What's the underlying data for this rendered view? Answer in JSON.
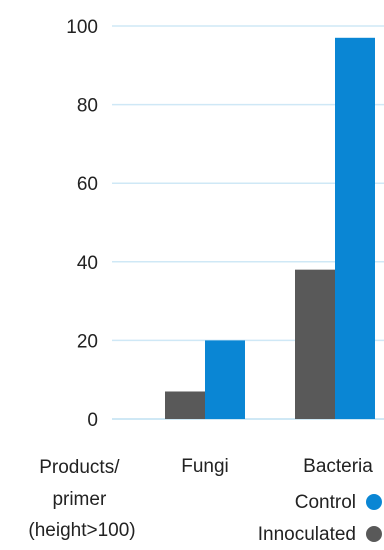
{
  "chart_data": {
    "type": "bar",
    "ylabel_lines": [
      "Products/",
      "primer",
      "(height>100)"
    ],
    "categories": [
      "Fungi",
      "Bacteria"
    ],
    "ylim": [
      0,
      100
    ],
    "yticks": [
      0,
      20,
      40,
      60,
      80,
      100
    ],
    "grid": true,
    "legend_position": "bottom-right",
    "series": [
      {
        "name": "Innoculated",
        "color": "#595959",
        "values": [
          7,
          38
        ]
      },
      {
        "name": "Control",
        "color": "#0a86d4",
        "values": [
          20,
          97
        ]
      }
    ]
  }
}
